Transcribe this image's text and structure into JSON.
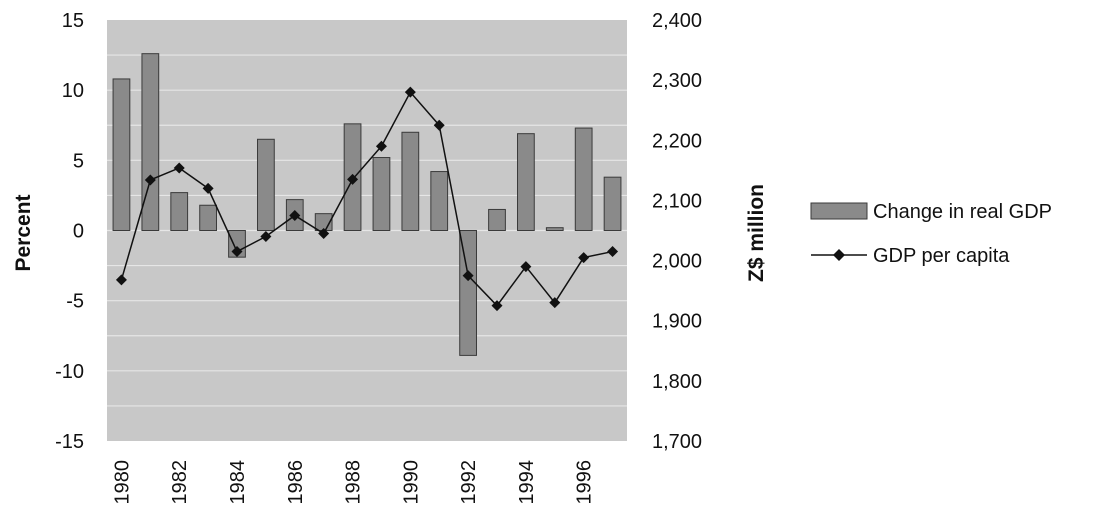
{
  "chart_data": {
    "type": "bar",
    "categories": [
      "1980",
      "1981",
      "1982",
      "1983",
      "1984",
      "1985",
      "1986",
      "1987",
      "1988",
      "1989",
      "1990",
      "1991",
      "1992",
      "1993",
      "1994",
      "1995",
      "1996",
      "1997"
    ],
    "x_tick_labels": [
      "1980",
      "1982",
      "1984",
      "1986",
      "1988",
      "1990",
      "1992",
      "1994",
      "1996"
    ],
    "series": [
      {
        "name": "Change in real GDP",
        "type": "bar",
        "axis": "left",
        "values": [
          10.8,
          12.6,
          2.7,
          1.8,
          -1.9,
          6.5,
          2.2,
          1.2,
          7.6,
          5.2,
          7.0,
          4.2,
          -8.9,
          1.5,
          6.9,
          0.2,
          7.3,
          3.8
        ]
      },
      {
        "name": "GDP per capita",
        "type": "line",
        "axis": "right",
        "values": [
          1968,
          2134,
          2154,
          2120,
          2015,
          2040,
          2075,
          2045,
          2135,
          2190,
          2280,
          2225,
          1975,
          1925,
          1990,
          1930,
          2005,
          2015
        ]
      }
    ],
    "ylabel": "Percent",
    "y2label": "Z$ million",
    "ylim": [
      -15,
      15
    ],
    "y2lim": [
      1700,
      2400
    ],
    "yticks": [
      "15",
      "10",
      "5",
      "0",
      "-5",
      "-10",
      "-15"
    ],
    "y2ticks": [
      "2,400",
      "2,300",
      "2,200",
      "2,100",
      "2,000",
      "1,900",
      "1,800",
      "1,700"
    ],
    "grid": true,
    "legend_position": "right",
    "colors": {
      "plot_bg": "#c8c8c8",
      "bar": "#8a8a8a",
      "bar_edge": "#3a3a3a",
      "line": "#111111",
      "grid": "#e6e6e6"
    }
  }
}
